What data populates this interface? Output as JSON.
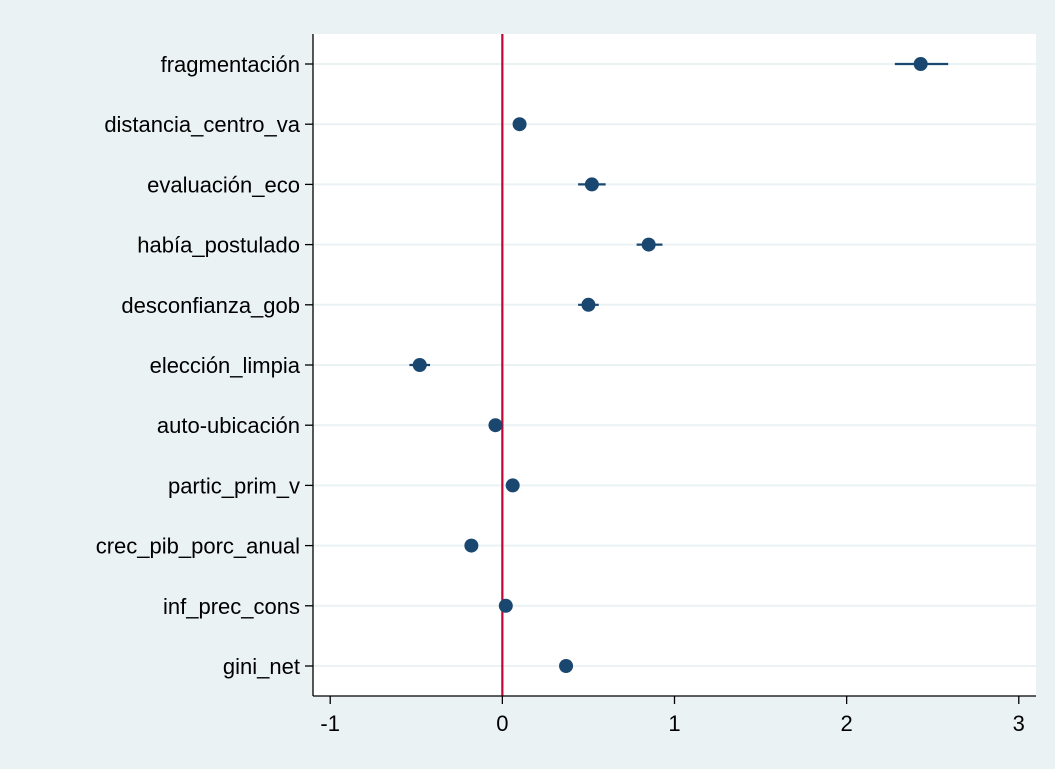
{
  "chart_data": {
    "type": "scatter",
    "subtype": "coefficient-plot",
    "title": "",
    "xlabel": "",
    "ylabel": "",
    "xlim": [
      -1.1,
      3.1
    ],
    "x_ticks": [
      -1,
      0,
      1,
      2,
      3
    ],
    "x_tick_labels": [
      "-1",
      "0",
      "1",
      "2",
      "3"
    ],
    "reference_line_x": 0,
    "grid": "horizontal",
    "legend": "none",
    "colors": {
      "background": "#eaf2f3",
      "plot_area": "#ffffff",
      "grid": "#eaf2f3",
      "marker": "#1a476f",
      "reference_line": "#c10534",
      "axis": "#000000"
    },
    "categories": [
      "fragmentación",
      "distancia_centro_va",
      "evaluación_eco",
      "había_postulado",
      "desconfianza_gob",
      "elección_limpia",
      "auto-ubicación",
      "partic_prim_v",
      "crec_pib_porc_anual",
      "inf_prec_cons",
      "gini_net"
    ],
    "values": [
      2.43,
      0.1,
      0.52,
      0.85,
      0.5,
      -0.48,
      -0.04,
      0.06,
      -0.18,
      0.02,
      0.37
    ],
    "ci_low": [
      2.28,
      0.07,
      0.44,
      0.78,
      0.44,
      -0.54,
      -0.06,
      0.04,
      -0.21,
      -0.01,
      0.34
    ],
    "ci_high": [
      2.59,
      0.13,
      0.6,
      0.93,
      0.56,
      -0.42,
      -0.02,
      0.08,
      -0.15,
      0.05,
      0.4
    ]
  }
}
